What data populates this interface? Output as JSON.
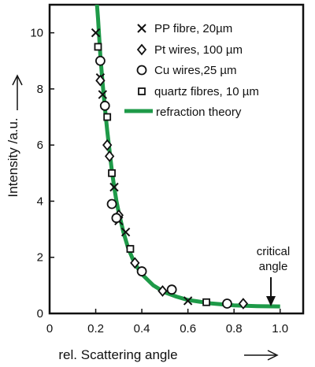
{
  "chart_data": {
    "type": "scatter",
    "title": "",
    "xlabel": "rel. Scattering angle",
    "ylabel": "Intensity /a.u.",
    "xlim": [
      0,
      1.1
    ],
    "ylim": [
      0,
      11
    ],
    "x_ticks": [
      0,
      0.2,
      0.4,
      0.6,
      0.8,
      1.0
    ],
    "x_tick_labels": [
      "0",
      "0.2",
      "0.4",
      "0.6",
      "0.8",
      "1.0"
    ],
    "y_ticks": [
      0,
      2,
      4,
      6,
      8,
      10
    ],
    "y_tick_labels": [
      "0",
      "2",
      "4",
      "6",
      "8",
      "10"
    ],
    "grid": false,
    "legend_position": "top-right",
    "series": [
      {
        "name": "PP fibre, 20µm",
        "marker": "x",
        "x": [
          0.2,
          0.22,
          0.23,
          0.28,
          0.3,
          0.33,
          0.6
        ],
        "y": [
          10.0,
          8.4,
          7.8,
          4.5,
          3.3,
          2.9,
          0.45
        ]
      },
      {
        "name": "Pt wires, 100 µm",
        "marker": "diamond",
        "x": [
          0.22,
          0.25,
          0.26,
          0.3,
          0.37,
          0.49,
          0.84
        ],
        "y": [
          8.3,
          6.0,
          5.6,
          3.5,
          1.8,
          0.8,
          0.35
        ]
      },
      {
        "name": "Cu wires,25 µm",
        "marker": "circle",
        "x": [
          0.22,
          0.24,
          0.27,
          0.29,
          0.4,
          0.53,
          0.77
        ],
        "y": [
          9.0,
          7.4,
          3.9,
          3.4,
          1.5,
          0.85,
          0.35
        ]
      },
      {
        "name": "quartz fibres, 10 µm",
        "marker": "square",
        "x": [
          0.21,
          0.25,
          0.27,
          0.35,
          0.68
        ],
        "y": [
          9.5,
          7.0,
          5.0,
          2.3,
          0.4
        ]
      },
      {
        "name": "refraction theory",
        "marker": "line",
        "color": "#1e9a48",
        "x": [
          0.2,
          0.21,
          0.22,
          0.23,
          0.24,
          0.25,
          0.26,
          0.27,
          0.28,
          0.29,
          0.3,
          0.32,
          0.34,
          0.36,
          0.38,
          0.4,
          0.45,
          0.5,
          0.55,
          0.6,
          0.7,
          0.8,
          0.9,
          1.0
        ],
        "y": [
          11.6,
          10.5,
          9.2,
          8.2,
          7.3,
          6.5,
          5.8,
          5.1,
          4.5,
          4.0,
          3.6,
          2.9,
          2.35,
          1.95,
          1.65,
          1.4,
          1.0,
          0.75,
          0.6,
          0.48,
          0.36,
          0.29,
          0.26,
          0.25
        ]
      }
    ],
    "annotations": [
      {
        "text": "critical",
        "x": 1.0
      },
      {
        "text": "angle",
        "x": 1.0
      }
    ],
    "colors": {
      "markers": "#111111",
      "theory": "#1e9a48"
    }
  }
}
